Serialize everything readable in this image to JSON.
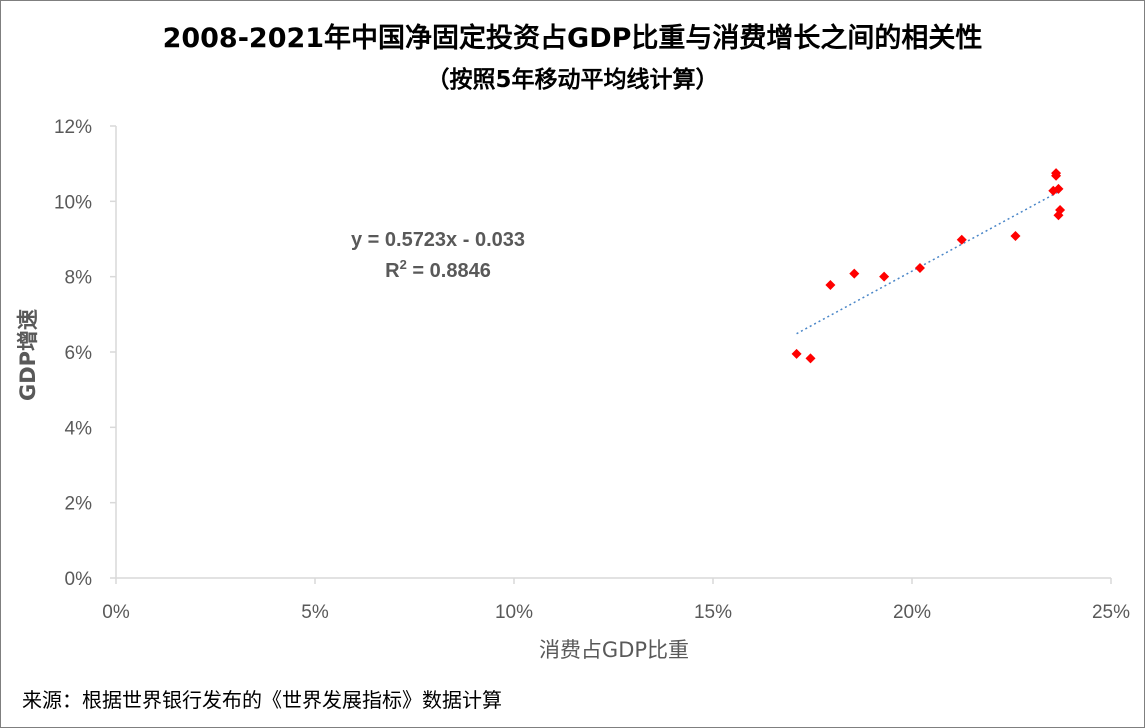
{
  "chart_data": {
    "type": "scatter",
    "title": "2008-2021年中国净固定投资占GDP比重与消费增长之间的相关性",
    "subtitle": "（按照5年移动平均线计算）",
    "xlabel": "消费占GDP比重",
    "ylabel": "GDP增速",
    "xlim": [
      0,
      0.25
    ],
    "ylim": [
      0,
      0.12
    ],
    "x_ticks": [
      {
        "value": 0,
        "label": "0%"
      },
      {
        "value": 0.05,
        "label": "5%"
      },
      {
        "value": 0.1,
        "label": "10%"
      },
      {
        "value": 0.15,
        "label": "15%"
      },
      {
        "value": 0.2,
        "label": "20%"
      },
      {
        "value": 0.25,
        "label": "25%"
      }
    ],
    "y_ticks": [
      {
        "value": 0,
        "label": "0%"
      },
      {
        "value": 0.02,
        "label": "2%"
      },
      {
        "value": 0.04,
        "label": "4%"
      },
      {
        "value": 0.06,
        "label": "6%"
      },
      {
        "value": 0.08,
        "label": "8%"
      },
      {
        "value": 0.1,
        "label": "10%"
      },
      {
        "value": 0.12,
        "label": "12%"
      }
    ],
    "grid": false,
    "marker_color": "#ff0000",
    "trendline_color": "#4a86c8",
    "points": [
      {
        "x": 0.171,
        "y": 0.0595
      },
      {
        "x": 0.1745,
        "y": 0.0583
      },
      {
        "x": 0.1795,
        "y": 0.0778
      },
      {
        "x": 0.1855,
        "y": 0.0808
      },
      {
        "x": 0.193,
        "y": 0.08
      },
      {
        "x": 0.202,
        "y": 0.0823
      },
      {
        "x": 0.2125,
        "y": 0.0898
      },
      {
        "x": 0.226,
        "y": 0.0908
      },
      {
        "x": 0.2355,
        "y": 0.1028
      },
      {
        "x": 0.2362,
        "y": 0.1068
      },
      {
        "x": 0.2362,
        "y": 0.1075
      },
      {
        "x": 0.2368,
        "y": 0.1033
      },
      {
        "x": 0.2368,
        "y": 0.0963
      },
      {
        "x": 0.2372,
        "y": 0.0977
      }
    ],
    "trendline": {
      "slope": 0.5723,
      "intercept": -0.033,
      "x_range": [
        0.171,
        0.2372
      ],
      "equation": "y = 0.5723x - 0.033",
      "r2_prefix": "R",
      "r2_sup": "2",
      "r2_value": " = 0.8846"
    }
  },
  "source": "来源：根据世界银行发布的《世界发展指标》数据计算"
}
